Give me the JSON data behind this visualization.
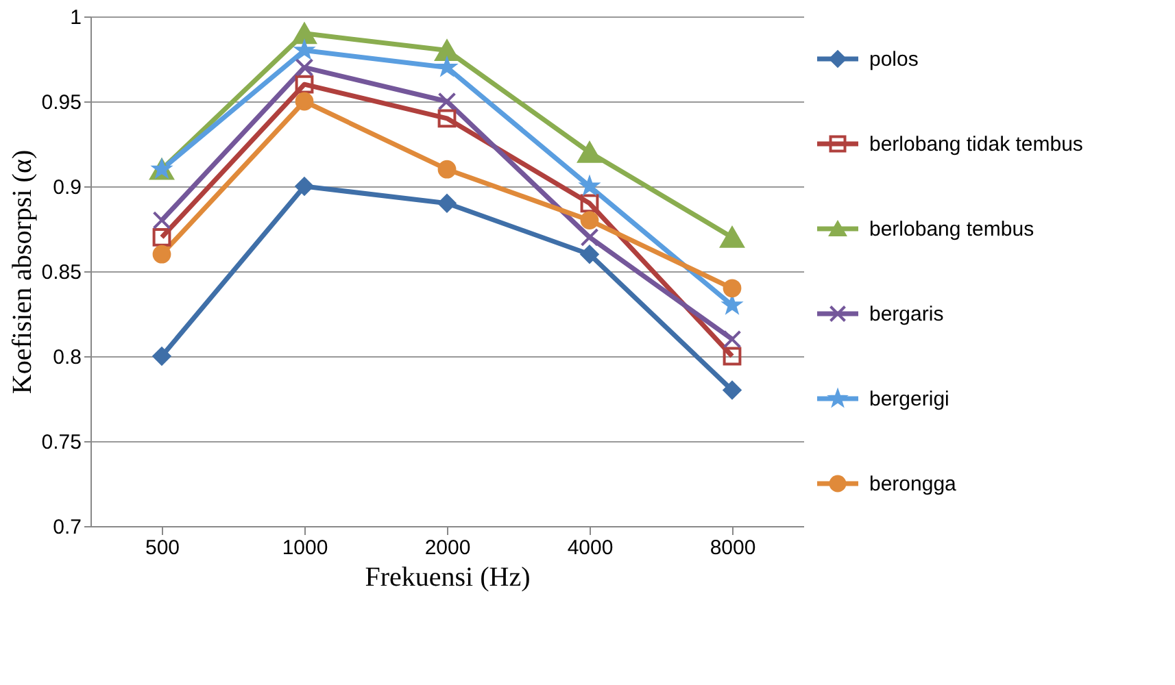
{
  "chart_data": {
    "type": "line",
    "xlabel": "Frekuensi (Hz)",
    "ylabel": "Koefisien absorpsi (α)",
    "categories": [
      "500",
      "1000",
      "2000",
      "4000",
      "8000"
    ],
    "ylim": [
      0.7,
      1
    ],
    "yticks": [
      0.7,
      0.75,
      0.8,
      0.85,
      0.9,
      0.95,
      1
    ],
    "grid": "y",
    "legend": "right",
    "line_style": "solid",
    "series": [
      {
        "name": "polos",
        "color": "#3f6fa8",
        "marker": "diamond",
        "values": [
          0.8,
          0.9,
          0.89,
          0.86,
          0.78
        ]
      },
      {
        "name": "berlobang tidak tembus",
        "color": "#b0403d",
        "marker": "square",
        "values": [
          0.87,
          0.96,
          0.94,
          0.89,
          0.8
        ]
      },
      {
        "name": "berlobang tembus",
        "color": "#8aad4f",
        "marker": "triangle",
        "values": [
          0.91,
          0.99,
          0.98,
          0.92,
          0.87
        ]
      },
      {
        "name": "bergaris",
        "color": "#74579a",
        "marker": "cross",
        "values": [
          0.88,
          0.97,
          0.95,
          0.87,
          0.81
        ]
      },
      {
        "name": "bergerigi",
        "color": "#5a9ee0",
        "marker": "star",
        "values": [
          0.91,
          0.98,
          0.97,
          0.9,
          0.83
        ]
      },
      {
        "name": "berongga",
        "color": "#e08a3a",
        "marker": "circle",
        "values": [
          0.86,
          0.95,
          0.91,
          0.88,
          0.84
        ]
      }
    ]
  }
}
